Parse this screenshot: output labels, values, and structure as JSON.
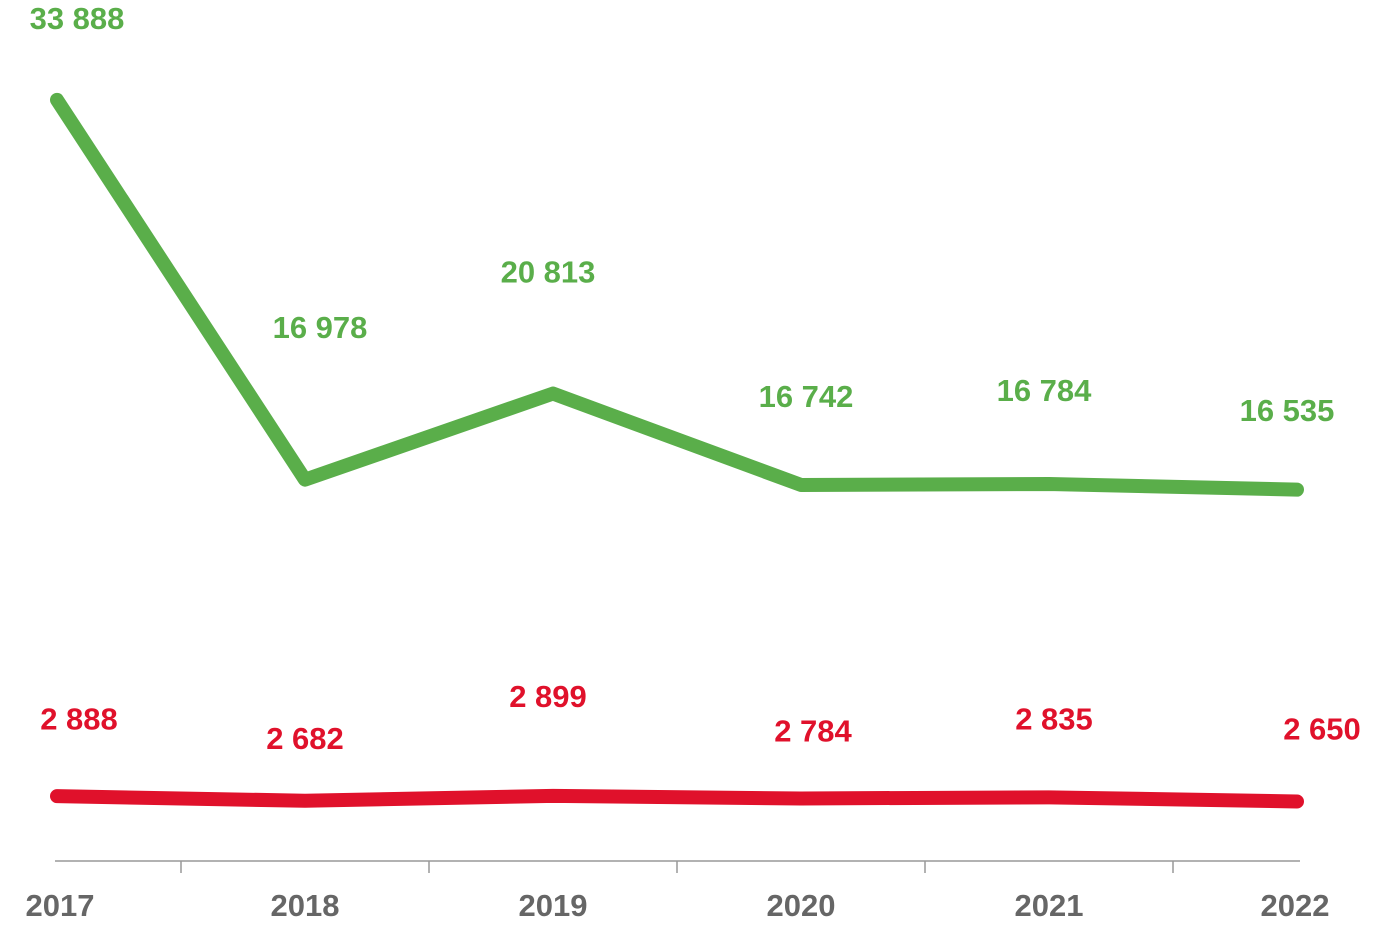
{
  "chart_data": {
    "type": "line",
    "categories": [
      "2017",
      "2018",
      "2019",
      "2020",
      "2021",
      "2022"
    ],
    "series": [
      {
        "color": "#5aae4a",
        "values": [
          33888,
          16978,
          20813,
          16742,
          16784,
          16535
        ],
        "value_labels": [
          "33 888",
          "16 978",
          "20 813",
          "16 742",
          "16 784",
          "16 535"
        ]
      },
      {
        "color": "#e0112b",
        "values": [
          2888,
          2682,
          2899,
          2784,
          2835,
          2650
        ],
        "value_labels": [
          "2 888",
          "2 682",
          "2 899",
          "2 784",
          "2 835",
          "2 650"
        ]
      }
    ],
    "ylim": [
      0,
      37000
    ]
  }
}
